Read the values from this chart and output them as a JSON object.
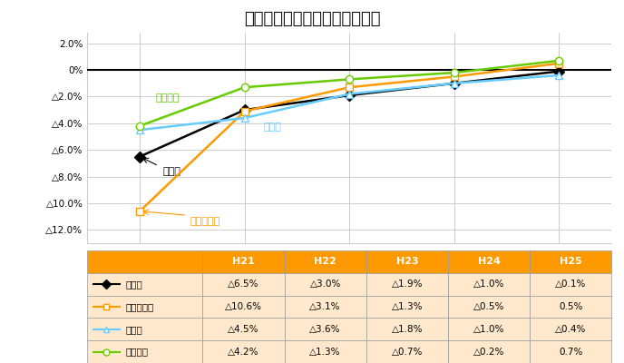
{
  "title": "圈域別住宅地の年間変動率推移",
  "x_labels": [
    "H21",
    "H22",
    "H23",
    "H24",
    "H25"
  ],
  "series": [
    {
      "name": "東京圈",
      "color": "#000000",
      "marker": "D",
      "marker_face": "#000000",
      "values": [
        -6.5,
        -3.0,
        -1.9,
        -1.0,
        -0.1
      ]
    },
    {
      "name": "東京都区部",
      "color": "#FF9900",
      "marker": "s",
      "marker_face": "#FFFFFF",
      "values": [
        -10.6,
        -3.1,
        -1.3,
        -0.5,
        0.5
      ]
    },
    {
      "name": "大阪圈",
      "color": "#66CCFF",
      "marker": "^",
      "marker_face": "#FFFFFF",
      "values": [
        -4.5,
        -3.6,
        -1.8,
        -1.0,
        -0.4
      ]
    },
    {
      "name": "名古屋圈",
      "color": "#66CC00",
      "marker": "o",
      "marker_face": "#FFFFFF",
      "values": [
        -4.2,
        -1.3,
        -0.7,
        -0.2,
        0.7
      ]
    }
  ],
  "ytick_vals": [
    2.0,
    0.0,
    -2.0,
    -4.0,
    -6.0,
    -8.0,
    -10.0,
    -12.0
  ],
  "ytick_labels": [
    "2.0%",
    "0%",
    "△2.0%",
    "△4.0%",
    "△6.0%",
    "△8.0%",
    "△10.0%",
    "△12.0%"
  ],
  "header_color": "#FF9900",
  "header_text_color": "#FFFFFF",
  "table_bg": "#FFE8CC",
  "table_border": "#C0C0C0",
  "table_data": [
    [
      "△6.5%",
      "△3.0%",
      "△1.9%",
      "△1.0%",
      "△0.1%"
    ],
    [
      "△10.6%",
      "△3.1%",
      "△1.3%",
      "△0.5%",
      "0.5%"
    ],
    [
      "△4.5%",
      "△3.6%",
      "△1.8%",
      "△1.0%",
      "△0.4%"
    ],
    [
      "△4.2%",
      "△1.3%",
      "△0.7%",
      "△0.2%",
      "0.7%"
    ]
  ]
}
